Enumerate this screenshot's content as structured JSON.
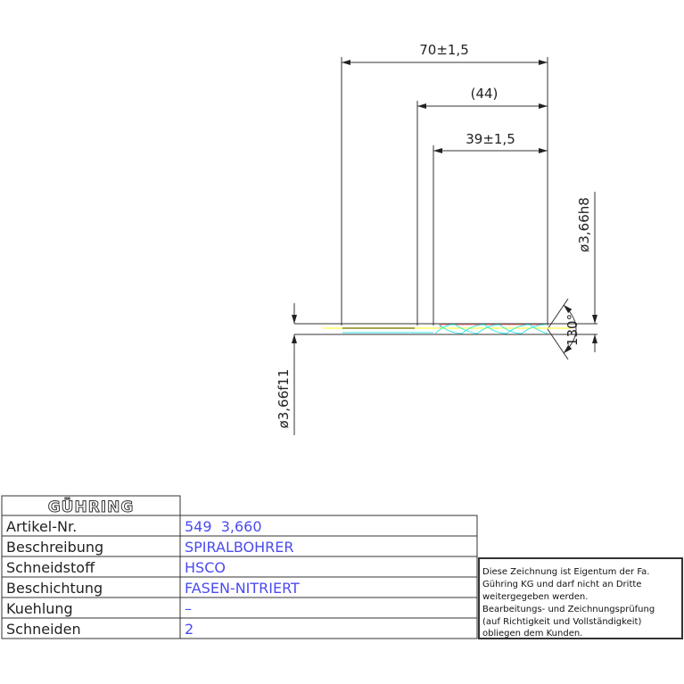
{
  "drawing": {
    "dimensions": {
      "overall_length": "70±1,5",
      "shank_ref": "(44)",
      "flute_length": "39±1,5",
      "tip_diameter": "ø3,66h8",
      "shank_diameter": "ø3,66f11",
      "point_angle": "130°"
    },
    "colors": {
      "lines": "#333333",
      "flute": "#33e6e6",
      "axis": "#ffff66",
      "edge": "#ff5555",
      "values": "#4b4bf0"
    }
  },
  "title_block": {
    "logo": "GÜHRING",
    "rows": [
      {
        "label": "Artikel-Nr.",
        "value": "549  3,660"
      },
      {
        "label": "Beschreibung",
        "value": "SPIRALBOHRER"
      },
      {
        "label": "Schneidstoff",
        "value": "HSCO"
      },
      {
        "label": "Beschichtung",
        "value": "FASEN-NITRIERT"
      },
      {
        "label": "Kuehlung",
        "value": "–"
      },
      {
        "label": "Schneiden",
        "value": "2"
      }
    ],
    "notice": [
      "Diese Zeichnung ist Eigentum der Fa.",
      "Gühring KG und darf nicht an Dritte",
      "weitergegeben werden.",
      "Bearbeitungs- und Zeichnungsprüfung",
      "(auf Richtigkeit und Vollständigkeit)",
      "obliegen dem Kunden."
    ]
  }
}
